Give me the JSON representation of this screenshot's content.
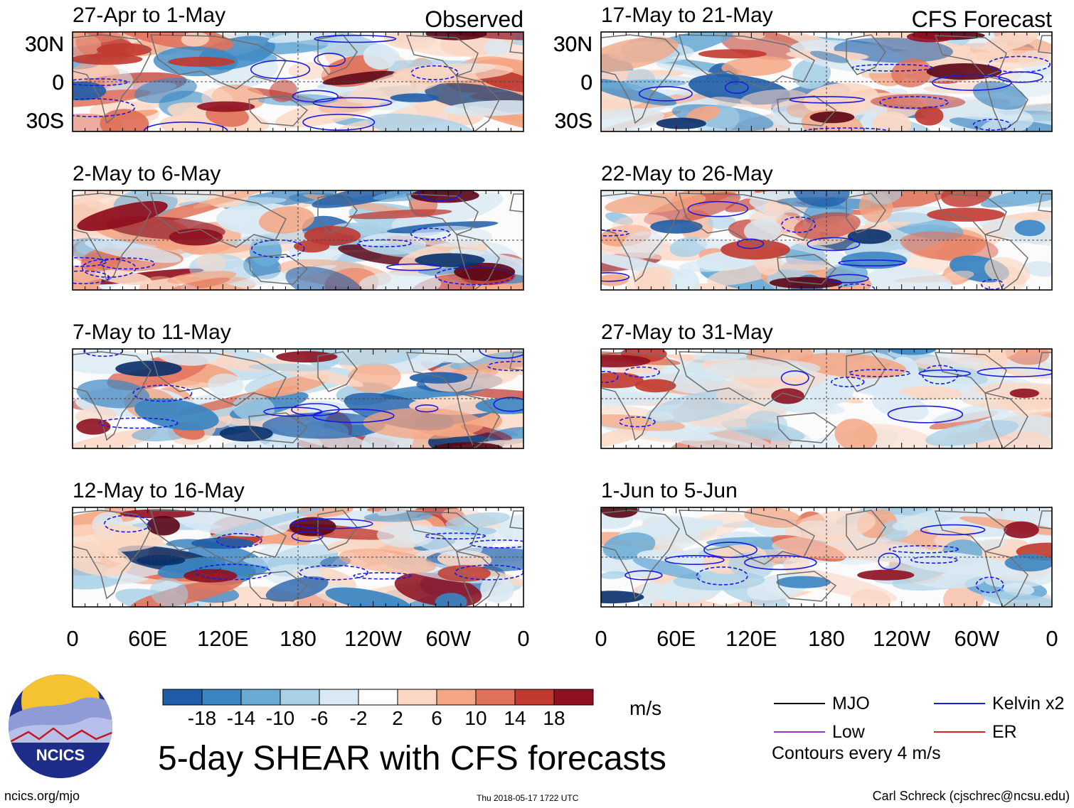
{
  "figure": {
    "title": "5-day SHEAR with CFS forecasts",
    "footer_left": "ncics.org/mjo",
    "footer_center": "Thu 2018-05-17 1722 UTC",
    "footer_right": "Carl Schreck (cjschrec@ncsu.edu)",
    "logo_text": "NCICS"
  },
  "chart_data": {
    "type": "heatmap",
    "variable": "5-day wind SHEAR anomaly",
    "units": "m/s",
    "column_labels": {
      "observed": "Observed",
      "forecast": "CFS Forecast"
    },
    "panels_observed": [
      {
        "period": "27-Apr to 1-May"
      },
      {
        "period": "2-May to 6-May"
      },
      {
        "period": "7-May to 11-May"
      },
      {
        "period": "12-May to 16-May"
      }
    ],
    "panels_forecast": [
      {
        "period": "17-May to 21-May"
      },
      {
        "period": "22-May to 26-May"
      },
      {
        "period": "27-May to 31-May"
      },
      {
        "period": "1-Jun to 5-Jun"
      }
    ],
    "lat_ticks": [
      "30N",
      "0",
      "30S"
    ],
    "lon_ticks": [
      "0",
      "60E",
      "120E",
      "180",
      "120W",
      "60W",
      "0"
    ],
    "lat_range": [
      -40,
      40
    ],
    "lon_range": [
      0,
      360
    ],
    "colorbar": {
      "units_label": "m/s",
      "levels": [
        "-18",
        "-14",
        "-10",
        "-6",
        "-2",
        "2",
        "6",
        "10",
        "14",
        "18"
      ],
      "colors": [
        "#08306b",
        "#1f5da8",
        "#3a85c2",
        "#6aabd6",
        "#a9d0e6",
        "#d9e9f3",
        "#ffffff",
        "#fbd7c4",
        "#f4a582",
        "#e0715a",
        "#c1392f",
        "#8f1020",
        "#5a0515"
      ]
    },
    "contour_legend": {
      "items": [
        {
          "label": "MJO",
          "color": "#000000"
        },
        {
          "label": "Kelvin x2",
          "color": "#1a1ae0"
        },
        {
          "label": "Low",
          "color": "#9b30d0"
        },
        {
          "label": "ER",
          "color": "#e02020"
        }
      ],
      "note": "Contours every 4 m/s"
    }
  }
}
